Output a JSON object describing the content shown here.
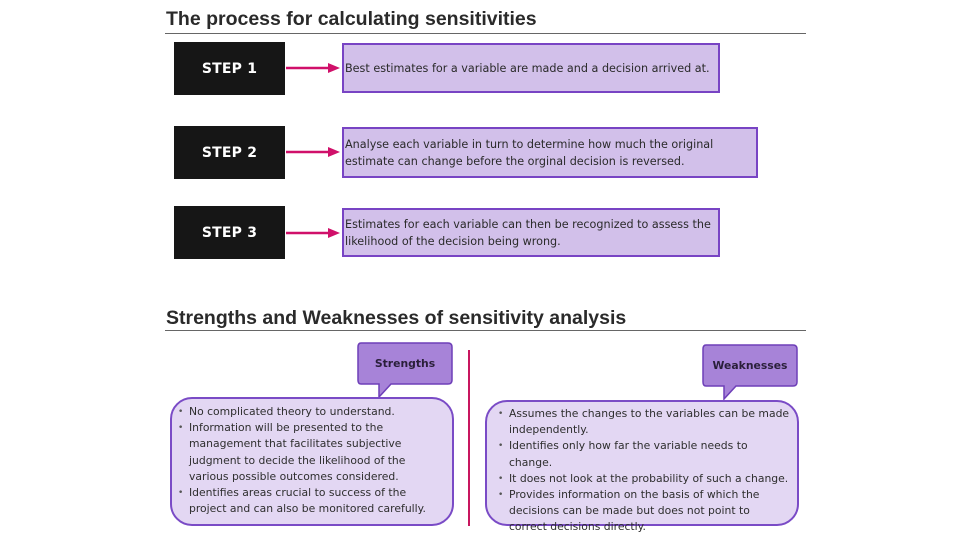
{
  "process": {
    "title": "The process for calculating sensitivities",
    "steps": [
      {
        "label": "STEP 1",
        "text": "Best estimates for a variable are made and a decision arrived at."
      },
      {
        "label": "STEP 2",
        "text": "Analyse each variable in turn to determine how much the original estimate can change before the orginal decision is reversed."
      },
      {
        "label": "STEP 3",
        "text": "Estimates for each variable can then be recognized to assess the likelihood of the decision being wrong."
      }
    ]
  },
  "analysis": {
    "title": "Strengths and Weaknesses of sensitivity analysis",
    "strengths": {
      "label": "Strengths",
      "items": [
        "No complicated theory to understand.",
        "Information will be presented to the management that facilitates subjective judgment to decide the likelihood of the various possible outcomes considered.",
        "Identifies areas crucial to success of the project and can also be monitored carefully."
      ]
    },
    "weaknesses": {
      "label": "Weaknesses",
      "items": [
        "Assumes the changes to the variables can be made independently.",
        "Identifies only how far the variable needs to change.",
        "It does not look at the probability of such a change.",
        "Provides information on the basis of which the decisions can be made but does not point to correct decisions directly."
      ]
    }
  },
  "colors": {
    "arrow": "#d0106a",
    "box_fill": "#d2c0ea",
    "box_border": "#7844c4",
    "callout_fill": "#a783d8",
    "step_fill": "#161616"
  }
}
